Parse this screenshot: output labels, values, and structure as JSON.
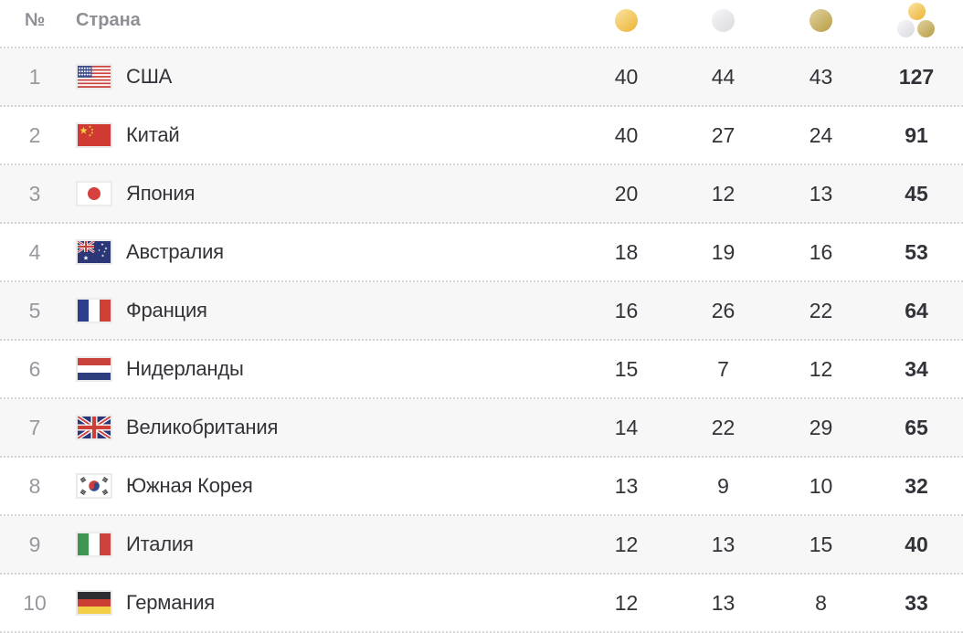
{
  "header": {
    "rank_label": "№",
    "country_label": "Страна",
    "gold_icon": "gold-medal",
    "silver_icon": "silver-medal",
    "bronze_icon": "bronze-medal",
    "total_icon": "all-medals-cluster"
  },
  "colors": {
    "gold_light": "#f7da8c",
    "gold_dark": "#eeba45",
    "silver_light": "#f1f1f4",
    "silver_dark": "#dedee3",
    "bronze_light": "#d9c78d",
    "bronze_dark": "#bfa553",
    "row_alt": "#f7f7f8",
    "divider": "#d6d6d8",
    "text": "#323338",
    "muted": "#97999e",
    "header_muted": "#8d8f94",
    "flag_border": "#ebebed"
  },
  "chart_data": {
    "type": "table",
    "columns": [
      "rank",
      "country",
      "gold",
      "silver",
      "bronze",
      "total"
    ],
    "rows": [
      {
        "rank": 1,
        "country": "США",
        "flag": "us",
        "gold": 40,
        "silver": 44,
        "bronze": 43,
        "total": 127
      },
      {
        "rank": 2,
        "country": "Китай",
        "flag": "cn",
        "gold": 40,
        "silver": 27,
        "bronze": 24,
        "total": 91
      },
      {
        "rank": 3,
        "country": "Япония",
        "flag": "jp",
        "gold": 20,
        "silver": 12,
        "bronze": 13,
        "total": 45
      },
      {
        "rank": 4,
        "country": "Австралия",
        "flag": "au",
        "gold": 18,
        "silver": 19,
        "bronze": 16,
        "total": 53
      },
      {
        "rank": 5,
        "country": "Франция",
        "flag": "fr",
        "gold": 16,
        "silver": 26,
        "bronze": 22,
        "total": 64
      },
      {
        "rank": 6,
        "country": "Нидерланды",
        "flag": "nl",
        "gold": 15,
        "silver": 7,
        "bronze": 12,
        "total": 34
      },
      {
        "rank": 7,
        "country": "Великобритания",
        "flag": "gb",
        "gold": 14,
        "silver": 22,
        "bronze": 29,
        "total": 65
      },
      {
        "rank": 8,
        "country": "Южная Корея",
        "flag": "kr",
        "gold": 13,
        "silver": 9,
        "bronze": 10,
        "total": 32
      },
      {
        "rank": 9,
        "country": "Италия",
        "flag": "it",
        "gold": 12,
        "silver": 13,
        "bronze": 15,
        "total": 40
      },
      {
        "rank": 10,
        "country": "Германия",
        "flag": "de",
        "gold": 12,
        "silver": 13,
        "bronze": 8,
        "total": 33
      }
    ]
  }
}
